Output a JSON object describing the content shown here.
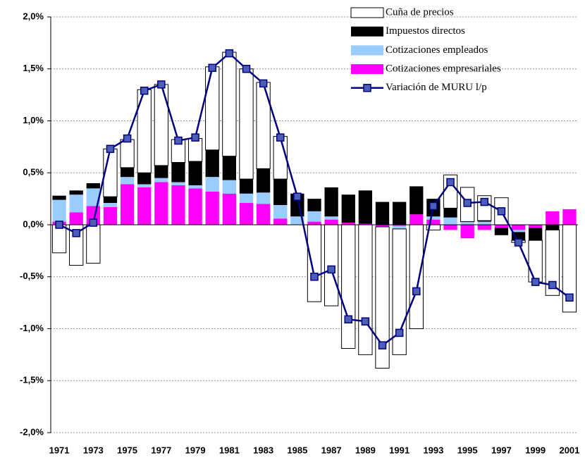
{
  "chart_data": {
    "type": "bar",
    "stacked": true,
    "categories": [
      "1971",
      null,
      "1973",
      null,
      "1975",
      null,
      "1977",
      null,
      "1979",
      null,
      "1981",
      null,
      "1983",
      null,
      "1985",
      null,
      "1987",
      null,
      "1989",
      null,
      "1991",
      null,
      "1993",
      null,
      "1995",
      null,
      "1997",
      null,
      "1999",
      null,
      "2001"
    ],
    "series": [
      {
        "name": "Cuña de precios",
        "color": "#ffffff",
        "type": "bar",
        "values": [
          -0.27,
          -0.39,
          -0.37,
          0.46,
          0.27,
          0.8,
          0.78,
          0.22,
          0.22,
          0.8,
          1.0,
          1.06,
          0.83,
          0.41,
          0.0,
          -0.74,
          -0.78,
          -1.19,
          -1.25,
          -1.36,
          -1.21,
          -1.0,
          -0.05,
          0.32,
          0.33,
          0.24,
          0.26,
          -0.02,
          -0.4,
          -0.63,
          -0.84
        ]
      },
      {
        "name": "Impuestos directos",
        "color": "#000000",
        "type": "bar",
        "values": [
          0.04,
          0.04,
          0.05,
          0.06,
          0.09,
          0.11,
          0.12,
          0.19,
          0.23,
          0.26,
          0.23,
          0.14,
          0.23,
          0.25,
          0.22,
          0.12,
          0.28,
          0.27,
          0.32,
          0.22,
          0.22,
          0.27,
          0.17,
          0.09,
          0.0,
          0.01,
          -0.07,
          -0.08,
          -0.12,
          -0.05,
          0.0
        ]
      },
      {
        "name": "Cotizaciones empleados",
        "color": "#99ccff",
        "type": "bar",
        "values": [
          0.21,
          0.17,
          0.17,
          0.04,
          0.07,
          0.03,
          0.04,
          0.03,
          0.03,
          0.14,
          0.13,
          0.09,
          0.11,
          0.13,
          0.08,
          0.1,
          0.03,
          0.0,
          0.0,
          0.0,
          -0.03,
          0.0,
          0.03,
          0.07,
          0.03,
          0.03,
          0.0,
          -0.02,
          0.0,
          0.0,
          0.0
        ]
      },
      {
        "name": "Cotizaciones empresariales",
        "color": "#ff00ff",
        "type": "bar",
        "values": [
          0.03,
          0.12,
          0.18,
          0.17,
          0.39,
          0.36,
          0.41,
          0.38,
          0.35,
          0.32,
          0.3,
          0.21,
          0.2,
          0.06,
          0.0,
          0.03,
          0.05,
          0.02,
          0.01,
          -0.02,
          -0.01,
          0.1,
          0.05,
          -0.05,
          -0.13,
          -0.05,
          -0.03,
          -0.05,
          -0.03,
          0.13,
          0.15
        ]
      },
      {
        "name": "Variación de MURU l/p",
        "color": "#000080",
        "type": "line",
        "values": [
          0.0,
          -0.08,
          0.02,
          0.73,
          0.83,
          1.29,
          1.35,
          0.81,
          0.84,
          1.51,
          1.65,
          1.5,
          1.36,
          0.84,
          0.27,
          -0.5,
          -0.43,
          -0.91,
          -0.93,
          -1.16,
          -1.04,
          -0.64,
          0.18,
          0.41,
          0.21,
          0.22,
          0.13,
          -0.17,
          -0.55,
          -0.58,
          -0.7
        ]
      }
    ],
    "ylim": [
      -2.0,
      2.0
    ],
    "yticks": [
      {
        "value": -2.0,
        "label": "-2,0%"
      },
      {
        "value": -1.5,
        "label": "-1,5%"
      },
      {
        "value": -1.0,
        "label": "-1,0%"
      },
      {
        "value": -0.5,
        "label": "-0,5%"
      },
      {
        "value": 0.0,
        "label": "0,0%"
      },
      {
        "value": 0.5,
        "label": "0,5%"
      },
      {
        "value": 1.0,
        "label": "1,0%"
      },
      {
        "value": 1.5,
        "label": "1,5%"
      },
      {
        "value": 2.0,
        "label": "2,0%"
      }
    ],
    "grid": true,
    "legend": "top-right"
  }
}
